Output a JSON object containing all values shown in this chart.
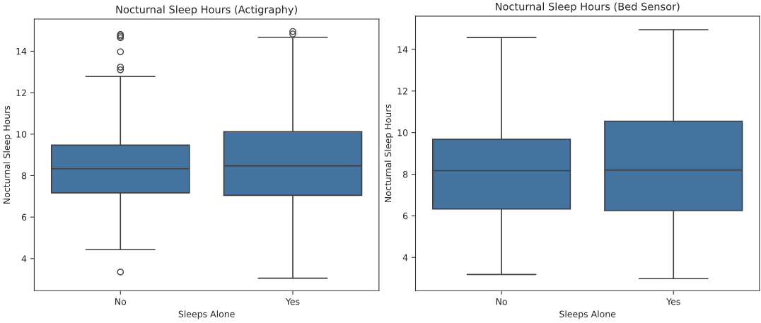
{
  "chart_data": [
    {
      "type": "box",
      "title": "Nocturnal Sleep Hours (Actigraphy)",
      "xlabel": "Sleeps Alone",
      "ylabel": "Nocturnal Sleep Hours",
      "categories": [
        "No",
        "Yes"
      ],
      "color": "#4473a0",
      "ylim": [
        2.45,
        15.55
      ],
      "yticks": [
        4,
        6,
        8,
        10,
        12,
        14
      ],
      "boxes": [
        {
          "low": 4.43,
          "q1": 7.17,
          "median": 8.33,
          "q3": 9.47,
          "high": 12.78,
          "outliers": [
            14.8,
            14.73,
            14.65,
            13.97,
            13.23,
            13.1,
            3.35
          ]
        },
        {
          "low": 3.05,
          "q1": 7.05,
          "median": 8.47,
          "q3": 10.12,
          "high": 14.67,
          "outliers": [
            14.95,
            14.83
          ]
        }
      ]
    },
    {
      "type": "box",
      "title": "Nocturnal Sleep Hours (Bed Sensor)",
      "xlabel": "Sleeps Alone",
      "ylabel": "Nocturnal Sleep Hours",
      "categories": [
        "No",
        "Yes"
      ],
      "color": "#4473a0",
      "ylim": [
        2.4,
        15.6
      ],
      "yticks": [
        4,
        6,
        8,
        10,
        12,
        14
      ],
      "boxes": [
        {
          "low": 3.18,
          "q1": 6.33,
          "median": 8.17,
          "q3": 9.68,
          "high": 14.57
        },
        {
          "low": 2.98,
          "q1": 6.25,
          "median": 8.2,
          "q3": 10.55,
          "high": 14.95
        }
      ]
    }
  ]
}
